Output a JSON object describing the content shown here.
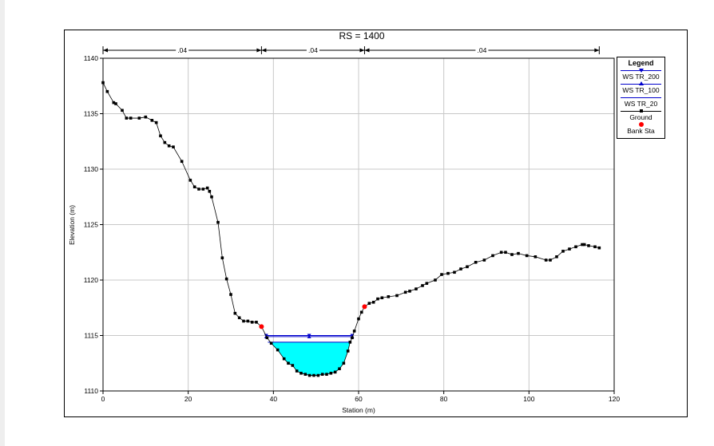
{
  "chart_data": {
    "type": "line",
    "title": "RS = 1400",
    "xlabel": "Station (m)",
    "ylabel": "Elevation (m)",
    "xlim": [
      0,
      120
    ],
    "ylim": [
      1110,
      1140
    ],
    "xticks": [
      0,
      20,
      40,
      60,
      80,
      100,
      120
    ],
    "yticks": [
      1110,
      1115,
      1120,
      1125,
      1130,
      1135,
      1140
    ],
    "grid": true,
    "legend_placement": "right",
    "roughness_labels": [
      ".04",
      ".04",
      ".04"
    ],
    "roughness_breaks": [
      0,
      37.2,
      61.4,
      116.5
    ],
    "legend_title": "Legend",
    "series": [
      {
        "name": "WS TR_200",
        "color": "#0000cc",
        "elevation": 1115.0,
        "x_range": [
          38.3,
          58.5
        ],
        "marker": "triangle-down"
      },
      {
        "name": "WS TR_100",
        "color": "#0000cc",
        "elevation": 1114.9,
        "x_range": [
          38.3,
          58.5
        ],
        "marker": "triangle-up"
      },
      {
        "name": "WS TR_20",
        "color": "#0000cc",
        "elevation": 1114.4,
        "x_range": [
          38.7,
          58.0
        ],
        "fill": "#00ffff"
      },
      {
        "name": "Ground",
        "color": "#000000",
        "marker": "square",
        "points": [
          [
            0,
            1137.8
          ],
          [
            1,
            1137.0
          ],
          [
            2.5,
            1136.0
          ],
          [
            3,
            1135.9
          ],
          [
            4.5,
            1135.3
          ],
          [
            5.5,
            1134.6
          ],
          [
            6.5,
            1134.6
          ],
          [
            8.5,
            1134.6
          ],
          [
            10,
            1134.7
          ],
          [
            11.5,
            1134.4
          ],
          [
            12.5,
            1134.2
          ],
          [
            13.5,
            1133.0
          ],
          [
            14.5,
            1132.4
          ],
          [
            15.5,
            1132.1
          ],
          [
            16.5,
            1132.0
          ],
          [
            18.5,
            1130.7
          ],
          [
            20.5,
            1129.0
          ],
          [
            21.5,
            1128.4
          ],
          [
            22.5,
            1128.2
          ],
          [
            23.5,
            1128.2
          ],
          [
            24.5,
            1128.3
          ],
          [
            25,
            1128.0
          ],
          [
            25.5,
            1127.5
          ],
          [
            27,
            1125.2
          ],
          [
            28,
            1122.0
          ],
          [
            29,
            1120.1
          ],
          [
            30,
            1118.7
          ],
          [
            31,
            1117.0
          ],
          [
            32,
            1116.6
          ],
          [
            33,
            1116.3
          ],
          [
            34,
            1116.3
          ],
          [
            35,
            1116.2
          ],
          [
            36,
            1116.2
          ],
          [
            37.2,
            1115.8
          ],
          [
            38.5,
            1114.8
          ],
          [
            39.5,
            1114.3
          ],
          [
            41,
            1113.7
          ],
          [
            42.5,
            1112.9
          ],
          [
            43.5,
            1112.5
          ],
          [
            44.5,
            1112.3
          ],
          [
            45.5,
            1111.8
          ],
          [
            46.5,
            1111.6
          ],
          [
            47.5,
            1111.5
          ],
          [
            48.5,
            1111.4
          ],
          [
            49.5,
            1111.4
          ],
          [
            50.5,
            1111.4
          ],
          [
            51.5,
            1111.5
          ],
          [
            52.5,
            1111.5
          ],
          [
            53.5,
            1111.6
          ],
          [
            54.5,
            1111.7
          ],
          [
            55.5,
            1112.0
          ],
          [
            56.5,
            1112.5
          ],
          [
            57.5,
            1113.6
          ],
          [
            58,
            1114.4
          ],
          [
            58.5,
            1114.8
          ],
          [
            59,
            1115.4
          ],
          [
            60,
            1116.5
          ],
          [
            60.7,
            1117.1
          ],
          [
            61.4,
            1117.6
          ],
          [
            62.5,
            1117.9
          ],
          [
            63.5,
            1118.0
          ],
          [
            64.5,
            1118.3
          ],
          [
            65.5,
            1118.4
          ],
          [
            67,
            1118.5
          ],
          [
            69,
            1118.6
          ],
          [
            71,
            1118.9
          ],
          [
            72,
            1119.0
          ],
          [
            73.5,
            1119.2
          ],
          [
            75,
            1119.5
          ],
          [
            76,
            1119.7
          ],
          [
            78,
            1120.0
          ],
          [
            79.5,
            1120.5
          ],
          [
            81,
            1120.6
          ],
          [
            82.5,
            1120.7
          ],
          [
            84,
            1121.0
          ],
          [
            85.5,
            1121.2
          ],
          [
            87.5,
            1121.6
          ],
          [
            89.5,
            1121.8
          ],
          [
            91.5,
            1122.2
          ],
          [
            93.5,
            1122.5
          ],
          [
            94.5,
            1122.5
          ],
          [
            96,
            1122.3
          ],
          [
            97.5,
            1122.4
          ],
          [
            99.5,
            1122.2
          ],
          [
            101.5,
            1122.1
          ],
          [
            104,
            1121.8
          ],
          [
            105,
            1121.8
          ],
          [
            106.5,
            1122.1
          ],
          [
            108,
            1122.6
          ],
          [
            109.5,
            1122.8
          ],
          [
            111,
            1123.0
          ],
          [
            112.5,
            1123.2
          ],
          [
            113,
            1123.2
          ],
          [
            114,
            1123.1
          ],
          [
            115.5,
            1123.0
          ],
          [
            116.5,
            1122.9
          ]
        ]
      },
      {
        "name": "Bank Sta",
        "color": "#ff0000",
        "marker": "circle",
        "points": [
          [
            37.2,
            1115.8
          ],
          [
            61.4,
            1117.6
          ]
        ]
      }
    ]
  }
}
